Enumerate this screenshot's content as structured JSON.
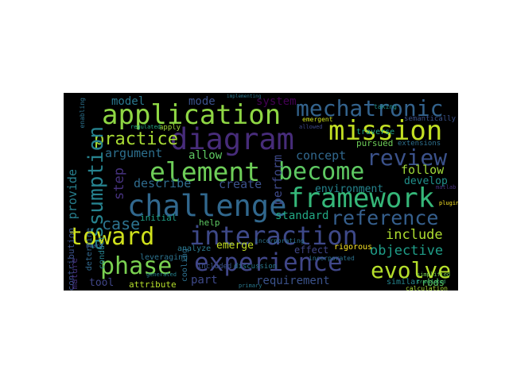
{
  "words": [
    {
      "text": "application",
      "color": "#8fd744"
    },
    {
      "text": "mechatronic",
      "color": "#33638d"
    },
    {
      "text": "diagram",
      "color": "#472c7a"
    },
    {
      "text": "mission",
      "color": "#c2df23"
    },
    {
      "text": "element",
      "color": "#6ece58"
    },
    {
      "text": "become",
      "color": "#5ec962"
    },
    {
      "text": "review",
      "color": "#3b528b"
    },
    {
      "text": "practice",
      "color": "#a8db34"
    },
    {
      "text": "framework",
      "color": "#35b779"
    },
    {
      "text": "challenge",
      "color": "#31688e"
    },
    {
      "text": "assumption",
      "color": "#26828e"
    },
    {
      "text": "toward",
      "color": "#d0e11c"
    },
    {
      "text": "interaction",
      "color": "#3e4989"
    },
    {
      "text": "phase",
      "color": "#7ad151"
    },
    {
      "text": "experience",
      "color": "#404688"
    },
    {
      "text": "evolve",
      "color": "#b5de2b"
    },
    {
      "text": "reference",
      "color": "#355f8d"
    },
    {
      "text": "case",
      "color": "#2c728e"
    },
    {
      "text": "include",
      "color": "#addc30"
    },
    {
      "text": "objective",
      "color": "#1f9e89"
    },
    {
      "text": "model",
      "color": "#2a788e"
    },
    {
      "text": "mode",
      "color": "#3b528b"
    },
    {
      "text": "system",
      "color": "#440154"
    },
    {
      "text": "step",
      "color": "#46327e"
    },
    {
      "text": "argument",
      "color": "#2d708e"
    },
    {
      "text": "allow",
      "color": "#5ec962"
    },
    {
      "text": "concept",
      "color": "#31688e"
    },
    {
      "text": "follow",
      "color": "#a0da39"
    },
    {
      "text": "develop",
      "color": "#21918c"
    },
    {
      "text": "environment",
      "color": "#25848e"
    },
    {
      "text": "provide",
      "color": "#277f8e"
    },
    {
      "text": "describe",
      "color": "#2f6c8e"
    },
    {
      "text": "create",
      "color": "#3b528b"
    },
    {
      "text": "perform",
      "color": "#3e4989"
    },
    {
      "text": "standard",
      "color": "#22a884"
    },
    {
      "text": "initial",
      "color": "#1fa088"
    },
    {
      "text": "help",
      "color": "#5ec962"
    },
    {
      "text": "emerge",
      "color": "#c2df23"
    },
    {
      "text": "effect",
      "color": "#404688"
    },
    {
      "text": "rigorous",
      "color": "#fde725"
    },
    {
      "text": "analyze",
      "color": "#2a788e"
    },
    {
      "text": "leveraging",
      "color": "#2c728e"
    },
    {
      "text": "part",
      "color": "#3e4989"
    },
    {
      "text": "requirement",
      "color": "#3b528b"
    },
    {
      "text": "tool",
      "color": "#404688"
    },
    {
      "text": "attribute",
      "color": "#b5de2b"
    },
    {
      "text": "similar",
      "color": "#25848e"
    },
    {
      "text": "rbds",
      "color": "#5ec962"
    },
    {
      "text": "pursued",
      "color": "#6ece58"
    },
    {
      "text": "extensions",
      "color": "#2d708e"
    },
    {
      "text": "traverse",
      "color": "#20a486"
    },
    {
      "text": "apply",
      "color": "#a0da39"
    },
    {
      "text": "contribution",
      "color": "#3b528b"
    },
    {
      "text": "mature",
      "color": "#46327e"
    },
    {
      "text": "conduct",
      "color": "#26828e"
    },
    {
      "text": "determine",
      "color": "#31688e"
    },
    {
      "text": "semantically",
      "color": "#3b528b"
    },
    {
      "text": "incorporated",
      "color": "#2c728e"
    },
    {
      "text": "discussion",
      "color": "#2a788e"
    },
    {
      "text": "incorporating",
      "color": "#2c728e"
    },
    {
      "text": "included",
      "color": "#3b528b"
    },
    {
      "text": "cooling",
      "color": "#2d708e"
    },
    {
      "text": "emergent",
      "color": "#d0e11c"
    },
    {
      "text": "calculation",
      "color": "#a8db34"
    },
    {
      "text": "enabling",
      "color": "#2c728e"
    },
    {
      "text": "simplified",
      "color": "#7ad151"
    },
    {
      "text": "generated",
      "color": "#26828e"
    },
    {
      "text": "primary",
      "color": "#2a788e"
    },
    {
      "text": "translated",
      "color": "#35b779"
    },
    {
      "text": "regulated",
      "color": "#22a884"
    },
    {
      "text": "allowed",
      "color": "#3e4989"
    },
    {
      "text": "plugins",
      "color": "#fde725"
    },
    {
      "text": "taking",
      "color": "#21918c"
    },
    {
      "text": "matlab",
      "color": "#46327e"
    },
    {
      "text": "board",
      "color": "#3b528b"
    },
    {
      "text": "implementing",
      "color": "#2a788e"
    }
  ]
}
